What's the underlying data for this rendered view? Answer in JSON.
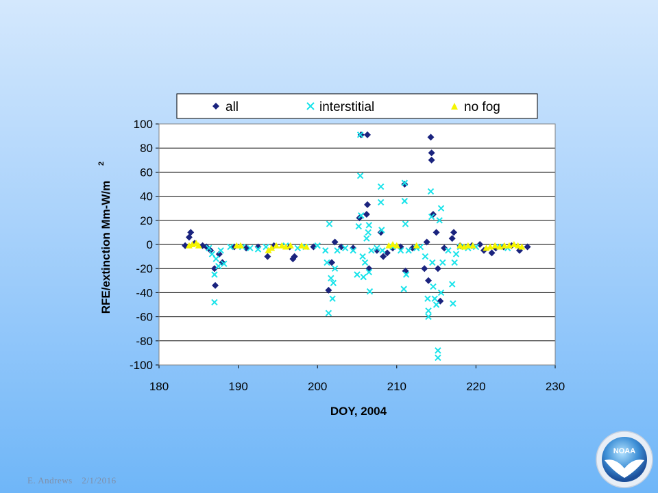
{
  "chart_data": {
    "type": "scatter",
    "title": "",
    "xlabel": "DOY, 2004",
    "ylabel": "RFE/extinction Mm-W/m",
    "ylabel_superscript": "2",
    "xlim": [
      180,
      230
    ],
    "ylim": [
      -100,
      100
    ],
    "xticks": [
      180,
      190,
      200,
      210,
      220,
      230
    ],
    "yticks": [
      100,
      80,
      60,
      40,
      20,
      0,
      -20,
      -40,
      -60,
      -80,
      -100
    ],
    "grid": "horizontal",
    "legend_position": "top",
    "series": [
      {
        "name": "all",
        "marker": "diamond",
        "color": "#1a237e",
        "points": [
          [
            183.3,
            -1
          ],
          [
            183.8,
            6
          ],
          [
            184.0,
            10
          ],
          [
            184.5,
            1
          ],
          [
            185.5,
            -1
          ],
          [
            186.0,
            -2
          ],
          [
            186.5,
            -5
          ],
          [
            187.0,
            -20
          ],
          [
            187.1,
            -34
          ],
          [
            187.6,
            -8
          ],
          [
            188.0,
            -15
          ],
          [
            189.5,
            -2
          ],
          [
            191.0,
            -3
          ],
          [
            192.5,
            -2
          ],
          [
            193.7,
            -10
          ],
          [
            194.5,
            -1
          ],
          [
            196.5,
            -2
          ],
          [
            196.9,
            -12
          ],
          [
            197.1,
            -10
          ],
          [
            199.5,
            -2
          ],
          [
            201.4,
            -38
          ],
          [
            201.8,
            -15
          ],
          [
            202.2,
            2
          ],
          [
            203.0,
            -2
          ],
          [
            204.5,
            -3
          ],
          [
            205.3,
            22
          ],
          [
            205.5,
            91
          ],
          [
            206.3,
            91
          ],
          [
            206.2,
            25
          ],
          [
            206.3,
            33
          ],
          [
            206.5,
            -20
          ],
          [
            207.5,
            -5
          ],
          [
            208.0,
            10
          ],
          [
            208.3,
            -10
          ],
          [
            208.8,
            -7
          ],
          [
            209.5,
            -3
          ],
          [
            210.5,
            -2
          ],
          [
            211.0,
            50
          ],
          [
            211.1,
            -22
          ],
          [
            212.0,
            -3
          ],
          [
            213.5,
            -20
          ],
          [
            213.8,
            2
          ],
          [
            214.0,
            -30
          ],
          [
            214.3,
            89
          ],
          [
            214.4,
            76
          ],
          [
            214.4,
            70
          ],
          [
            214.6,
            25
          ],
          [
            215.0,
            10
          ],
          [
            215.2,
            -20
          ],
          [
            215.5,
            -47
          ],
          [
            216.0,
            -3
          ],
          [
            217.0,
            5
          ],
          [
            217.2,
            10
          ],
          [
            218.0,
            -1
          ],
          [
            219.5,
            -1
          ],
          [
            220.5,
            0
          ],
          [
            221.0,
            -5
          ],
          [
            222.0,
            -7
          ],
          [
            222.5,
            -3
          ],
          [
            223.5,
            -2
          ],
          [
            224.5,
            -1
          ],
          [
            225.5,
            -5
          ],
          [
            226.5,
            -2
          ]
        ]
      },
      {
        "name": "interstitial",
        "marker": "x",
        "color": "#19e3ea",
        "points": [
          [
            186.3,
            -3
          ],
          [
            186.7,
            -8
          ],
          [
            187.0,
            -25
          ],
          [
            187.0,
            -48
          ],
          [
            187.2,
            -12
          ],
          [
            187.5,
            -18
          ],
          [
            187.8,
            -5
          ],
          [
            188.2,
            -16
          ],
          [
            189.0,
            -2
          ],
          [
            190.5,
            -2
          ],
          [
            191.5,
            -3
          ],
          [
            192.5,
            -4
          ],
          [
            193.5,
            -2
          ],
          [
            196.0,
            -1
          ],
          [
            197.5,
            -3
          ],
          [
            198.5,
            -2
          ],
          [
            200.0,
            -1
          ],
          [
            201.0,
            -5
          ],
          [
            201.2,
            -15
          ],
          [
            201.4,
            -57
          ],
          [
            201.5,
            17
          ],
          [
            201.7,
            -28
          ],
          [
            201.9,
            -45
          ],
          [
            202.0,
            -32
          ],
          [
            202.2,
            -20
          ],
          [
            202.5,
            -5
          ],
          [
            203.5,
            -3
          ],
          [
            204.5,
            -5
          ],
          [
            205.0,
            -25
          ],
          [
            205.2,
            15
          ],
          [
            205.4,
            57
          ],
          [
            205.4,
            91
          ],
          [
            205.5,
            24
          ],
          [
            205.7,
            -10
          ],
          [
            205.8,
            -27
          ],
          [
            206.0,
            -15
          ],
          [
            206.2,
            5
          ],
          [
            206.4,
            10
          ],
          [
            206.5,
            16
          ],
          [
            206.5,
            -23
          ],
          [
            206.6,
            -39
          ],
          [
            206.8,
            -5
          ],
          [
            207.5,
            -3
          ],
          [
            208.0,
            48
          ],
          [
            208.0,
            35
          ],
          [
            208.1,
            12
          ],
          [
            208.2,
            -5
          ],
          [
            209.5,
            -2
          ],
          [
            210.5,
            -5
          ],
          [
            210.9,
            -37
          ],
          [
            211.0,
            51
          ],
          [
            211.0,
            36
          ],
          [
            211.1,
            17
          ],
          [
            211.2,
            -25
          ],
          [
            211.5,
            -5
          ],
          [
            212.5,
            -3
          ],
          [
            213.0,
            -2
          ],
          [
            213.6,
            -10
          ],
          [
            213.9,
            -45
          ],
          [
            214.0,
            -60
          ],
          [
            214.0,
            -55
          ],
          [
            214.3,
            44
          ],
          [
            214.4,
            23
          ],
          [
            214.5,
            -15
          ],
          [
            214.6,
            -35
          ],
          [
            214.8,
            -45
          ],
          [
            215.0,
            -50
          ],
          [
            215.2,
            -88
          ],
          [
            215.2,
            -94
          ],
          [
            215.4,
            20
          ],
          [
            215.6,
            30
          ],
          [
            215.6,
            -40
          ],
          [
            215.8,
            -15
          ],
          [
            216.5,
            -5
          ],
          [
            217.0,
            -33
          ],
          [
            217.1,
            -49
          ],
          [
            217.3,
            -15
          ],
          [
            217.5,
            -8
          ],
          [
            218.0,
            -2
          ],
          [
            219.0,
            -3
          ],
          [
            220.0,
            -2
          ],
          [
            223.0,
            -2
          ],
          [
            224.0,
            -3
          ]
        ]
      },
      {
        "name": "no fog",
        "marker": "triangle",
        "color": "#f5f500",
        "points": [
          [
            183.8,
            -1
          ],
          [
            184.2,
            0
          ],
          [
            184.7,
            1
          ],
          [
            185.0,
            -1
          ],
          [
            189.8,
            -1
          ],
          [
            190.3,
            -1
          ],
          [
            193.8,
            -5
          ],
          [
            194.2,
            -3
          ],
          [
            194.8,
            -1
          ],
          [
            195.5,
            -1
          ],
          [
            196.0,
            -2
          ],
          [
            196.6,
            -1
          ],
          [
            198.0,
            -1
          ],
          [
            198.6,
            -2
          ],
          [
            209.0,
            -1
          ],
          [
            209.5,
            0
          ],
          [
            210.0,
            -1
          ],
          [
            212.5,
            -1
          ],
          [
            218.0,
            -1
          ],
          [
            218.5,
            -2
          ],
          [
            219.0,
            -1
          ],
          [
            219.6,
            -1
          ],
          [
            221.3,
            -3
          ],
          [
            221.8,
            -2
          ],
          [
            222.4,
            -1
          ],
          [
            223.0,
            -2
          ],
          [
            223.6,
            -1
          ],
          [
            224.2,
            -1
          ],
          [
            224.8,
            0
          ],
          [
            225.3,
            -1
          ],
          [
            225.8,
            -2
          ]
        ]
      }
    ]
  },
  "footer": {
    "author": "E. Andrews",
    "date": "2/1/2016"
  },
  "logo": {
    "text": "NOAA"
  }
}
